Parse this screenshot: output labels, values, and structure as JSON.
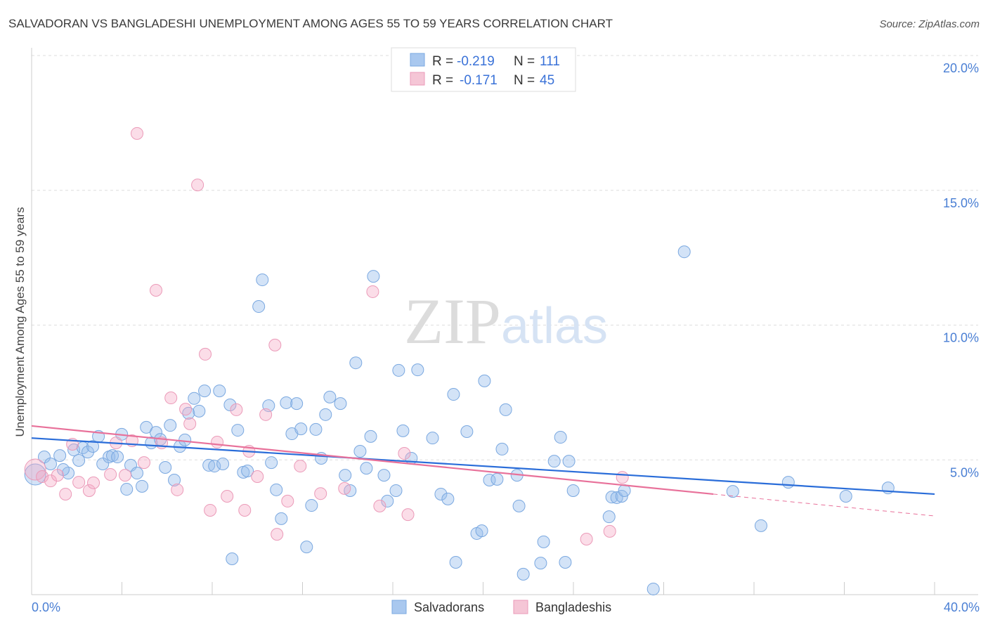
{
  "chart_data": {
    "type": "scatter",
    "title": "SALVADORAN VS BANGLADESHI UNEMPLOYMENT AMONG AGES 55 TO 59 YEARS CORRELATION CHART",
    "source": "Source: ZipAtlas.com",
    "xlabel": "",
    "ylabel": "Unemployment Among Ages 55 to 59 years",
    "xlim": [
      0,
      40
    ],
    "ylim": [
      0,
      20
    ],
    "x_tick_labels": [
      "0.0%",
      "40.0%"
    ],
    "y_ticks": [
      5,
      10,
      15,
      20
    ],
    "y_tick_labels": [
      "5.0%",
      "10.0%",
      "15.0%",
      "20.0%"
    ],
    "grid": true,
    "watermark": "ZIPatlas",
    "legend": {
      "placement": "top-center",
      "rows": [
        {
          "r_label": "R =",
          "r": "-0.219",
          "n_label": "N =",
          "n": "111"
        },
        {
          "r_label": "R =",
          "r": "-0.171",
          "n_label": "N =",
          "n": "45"
        }
      ]
    },
    "bottom_legend": [
      "Salvadorans",
      "Bangladeshis"
    ],
    "colors": {
      "blue": "#2a6dd9",
      "pink": "#e8719a",
      "blue_fill": "#a9c8ef",
      "pink_fill": "#f5bfd2"
    },
    "series": [
      {
        "name": "Salvadorans",
        "trend": {
          "x": [
            0,
            40
          ],
          "y": [
            5.81,
            3.73
          ]
        },
        "points": [
          [
            0.16,
            4.46
          ],
          [
            0.56,
            5.11
          ],
          [
            0.84,
            4.85
          ],
          [
            1.25,
            5.16
          ],
          [
            1.62,
            4.51
          ],
          [
            1.4,
            4.64
          ],
          [
            1.87,
            5.37
          ],
          [
            2.09,
            4.98
          ],
          [
            2.27,
            5.45
          ],
          [
            2.49,
            5.29
          ],
          [
            2.71,
            5.5
          ],
          [
            2.96,
            5.87
          ],
          [
            3.15,
            4.85
          ],
          [
            3.43,
            5.11
          ],
          [
            3.58,
            5.16
          ],
          [
            3.8,
            5.11
          ],
          [
            3.99,
            5.95
          ],
          [
            4.21,
            3.91
          ],
          [
            4.39,
            4.8
          ],
          [
            4.67,
            4.51
          ],
          [
            4.89,
            4.02
          ],
          [
            5.08,
            6.21
          ],
          [
            5.3,
            5.63
          ],
          [
            5.51,
            6.02
          ],
          [
            5.7,
            5.76
          ],
          [
            5.92,
            4.72
          ],
          [
            6.14,
            6.28
          ],
          [
            6.32,
            4.25
          ],
          [
            6.57,
            5.5
          ],
          [
            6.79,
            5.74
          ],
          [
            6.95,
            6.73
          ],
          [
            7.2,
            7.28
          ],
          [
            7.42,
            6.81
          ],
          [
            7.66,
            7.56
          ],
          [
            7.85,
            4.8
          ],
          [
            8.1,
            4.77
          ],
          [
            8.32,
            7.56
          ],
          [
            8.47,
            4.85
          ],
          [
            8.79,
            7.04
          ],
          [
            9.13,
            6.1
          ],
          [
            9.38,
            4.54
          ],
          [
            9.56,
            4.59
          ],
          [
            8.88,
            1.33
          ],
          [
            10.06,
            10.69
          ],
          [
            10.22,
            11.68
          ],
          [
            10.5,
            7.01
          ],
          [
            10.62,
            4.9
          ],
          [
            10.84,
            3.89
          ],
          [
            11.06,
            2.82
          ],
          [
            11.28,
            7.12
          ],
          [
            11.53,
            5.97
          ],
          [
            11.74,
            7.09
          ],
          [
            11.93,
            6.15
          ],
          [
            12.18,
            1.77
          ],
          [
            12.4,
            3.31
          ],
          [
            12.59,
            6.13
          ],
          [
            12.83,
            5.06
          ],
          [
            13.02,
            6.68
          ],
          [
            13.21,
            7.33
          ],
          [
            13.68,
            7.09
          ],
          [
            13.89,
            4.43
          ],
          [
            14.11,
            3.86
          ],
          [
            14.36,
            8.6
          ],
          [
            14.55,
            5.32
          ],
          [
            14.83,
            4.69
          ],
          [
            15.02,
            5.87
          ],
          [
            15.14,
            11.81
          ],
          [
            15.61,
            4.43
          ],
          [
            15.76,
            3.47
          ],
          [
            16.14,
            3.86
          ],
          [
            16.26,
            8.32
          ],
          [
            16.45,
            6.08
          ],
          [
            16.82,
            5.06
          ],
          [
            17.1,
            8.34
          ],
          [
            17.76,
            5.81
          ],
          [
            18.13,
            3.73
          ],
          [
            18.44,
            3.55
          ],
          [
            18.69,
            7.43
          ],
          [
            18.79,
            1.2
          ],
          [
            19.28,
            6.05
          ],
          [
            19.72,
            2.27
          ],
          [
            19.94,
            2.37
          ],
          [
            20.06,
            7.93
          ],
          [
            20.28,
            4.25
          ],
          [
            20.62,
            4.28
          ],
          [
            20.84,
            5.4
          ],
          [
            21.0,
            6.86
          ],
          [
            21.5,
            4.43
          ],
          [
            21.59,
            3.29
          ],
          [
            21.78,
            0.76
          ],
          [
            22.68,
            1.96
          ],
          [
            22.55,
            1.17
          ],
          [
            23.15,
            4.95
          ],
          [
            23.43,
            5.84
          ],
          [
            23.64,
            1.2
          ],
          [
            23.8,
            4.95
          ],
          [
            23.99,
            3.86
          ],
          [
            25.58,
            2.89
          ],
          [
            25.7,
            3.62
          ],
          [
            25.92,
            3.6
          ],
          [
            26.14,
            3.65
          ],
          [
            26.26,
            3.86
          ],
          [
            27.54,
            0.21
          ],
          [
            28.91,
            12.72
          ],
          [
            31.06,
            3.83
          ],
          [
            32.31,
            2.56
          ],
          [
            33.52,
            4.17
          ],
          [
            36.07,
            3.65
          ],
          [
            37.94,
            3.96
          ]
        ]
      },
      {
        "name": "Bangladeshis",
        "trend": {
          "x": [
            0,
            30.2
          ],
          "y": [
            6.26,
            3.73
          ],
          "dashed_to": [
            40,
            2.92
          ]
        },
        "points": [
          [
            0.16,
            4.64
          ],
          [
            0.47,
            4.38
          ],
          [
            0.84,
            4.22
          ],
          [
            1.15,
            4.43
          ],
          [
            1.5,
            3.73
          ],
          [
            1.81,
            5.58
          ],
          [
            2.09,
            4.17
          ],
          [
            2.55,
            3.86
          ],
          [
            2.74,
            4.15
          ],
          [
            3.49,
            4.46
          ],
          [
            3.74,
            5.63
          ],
          [
            4.14,
            4.43
          ],
          [
            4.45,
            5.71
          ],
          [
            4.67,
            17.11
          ],
          [
            4.98,
            4.9
          ],
          [
            5.51,
            11.29
          ],
          [
            5.76,
            5.63
          ],
          [
            6.45,
            3.89
          ],
          [
            6.17,
            7.3
          ],
          [
            6.82,
            6.88
          ],
          [
            7.01,
            6.34
          ],
          [
            7.35,
            15.2
          ],
          [
            7.69,
            8.92
          ],
          [
            7.91,
            3.13
          ],
          [
            8.22,
            5.66
          ],
          [
            8.66,
            3.65
          ],
          [
            9.07,
            6.86
          ],
          [
            9.44,
            3.13
          ],
          [
            9.63,
            5.32
          ],
          [
            10.0,
            4.38
          ],
          [
            10.37,
            6.68
          ],
          [
            10.78,
            9.26
          ],
          [
            10.87,
            2.24
          ],
          [
            11.34,
            3.47
          ],
          [
            11.9,
            4.77
          ],
          [
            12.8,
            3.75
          ],
          [
            13.86,
            3.94
          ],
          [
            15.11,
            11.24
          ],
          [
            15.42,
            3.29
          ],
          [
            16.51,
            5.24
          ],
          [
            16.67,
            2.97
          ],
          [
            24.58,
            2.06
          ],
          [
            25.61,
            2.35
          ],
          [
            26.17,
            4.35
          ]
        ]
      }
    ]
  }
}
